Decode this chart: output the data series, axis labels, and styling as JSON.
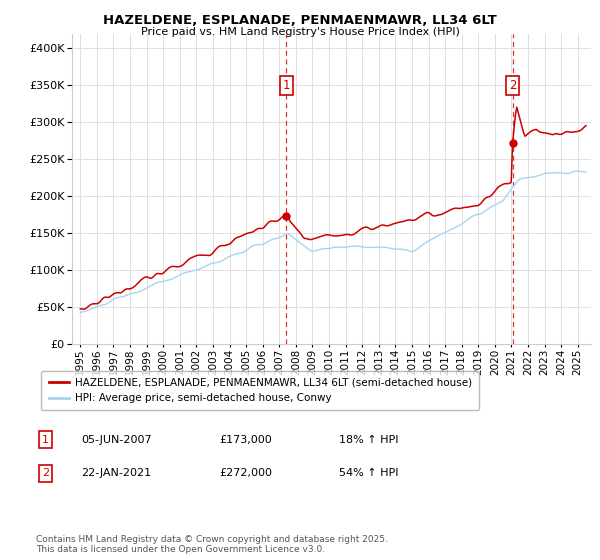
{
  "title": "HAZELDENE, ESPLANADE, PENMAENMAWR, LL34 6LT",
  "subtitle": "Price paid vs. HM Land Registry's House Price Index (HPI)",
  "legend_line1": "HAZELDENE, ESPLANADE, PENMAENMAWR, LL34 6LT (semi-detached house)",
  "legend_line2": "HPI: Average price, semi-detached house, Conwy",
  "annotation1_date": "05-JUN-2007",
  "annotation1_price": "£173,000",
  "annotation1_hpi": "18% ↑ HPI",
  "annotation2_date": "22-JAN-2021",
  "annotation2_price": "£272,000",
  "annotation2_hpi": "54% ↑ HPI",
  "footnote": "Contains HM Land Registry data © Crown copyright and database right 2025.\nThis data is licensed under the Open Government Licence v3.0.",
  "sale1_x": 2007.43,
  "sale1_y": 173000,
  "sale2_x": 2021.07,
  "sale2_y": 272000,
  "hpi_color": "#a8d4f0",
  "price_color": "#cc0000",
  "dashed_color": "#cc0000",
  "background_color": "#ffffff",
  "grid_color": "#e0e0e0",
  "ylim_min": 0,
  "ylim_max": 420000,
  "xlim_min": 1994.5,
  "xlim_max": 2025.8,
  "yticks": [
    0,
    50000,
    100000,
    150000,
    200000,
    250000,
    300000,
    350000,
    400000
  ],
  "xtick_start": 1995,
  "xtick_end": 2025
}
